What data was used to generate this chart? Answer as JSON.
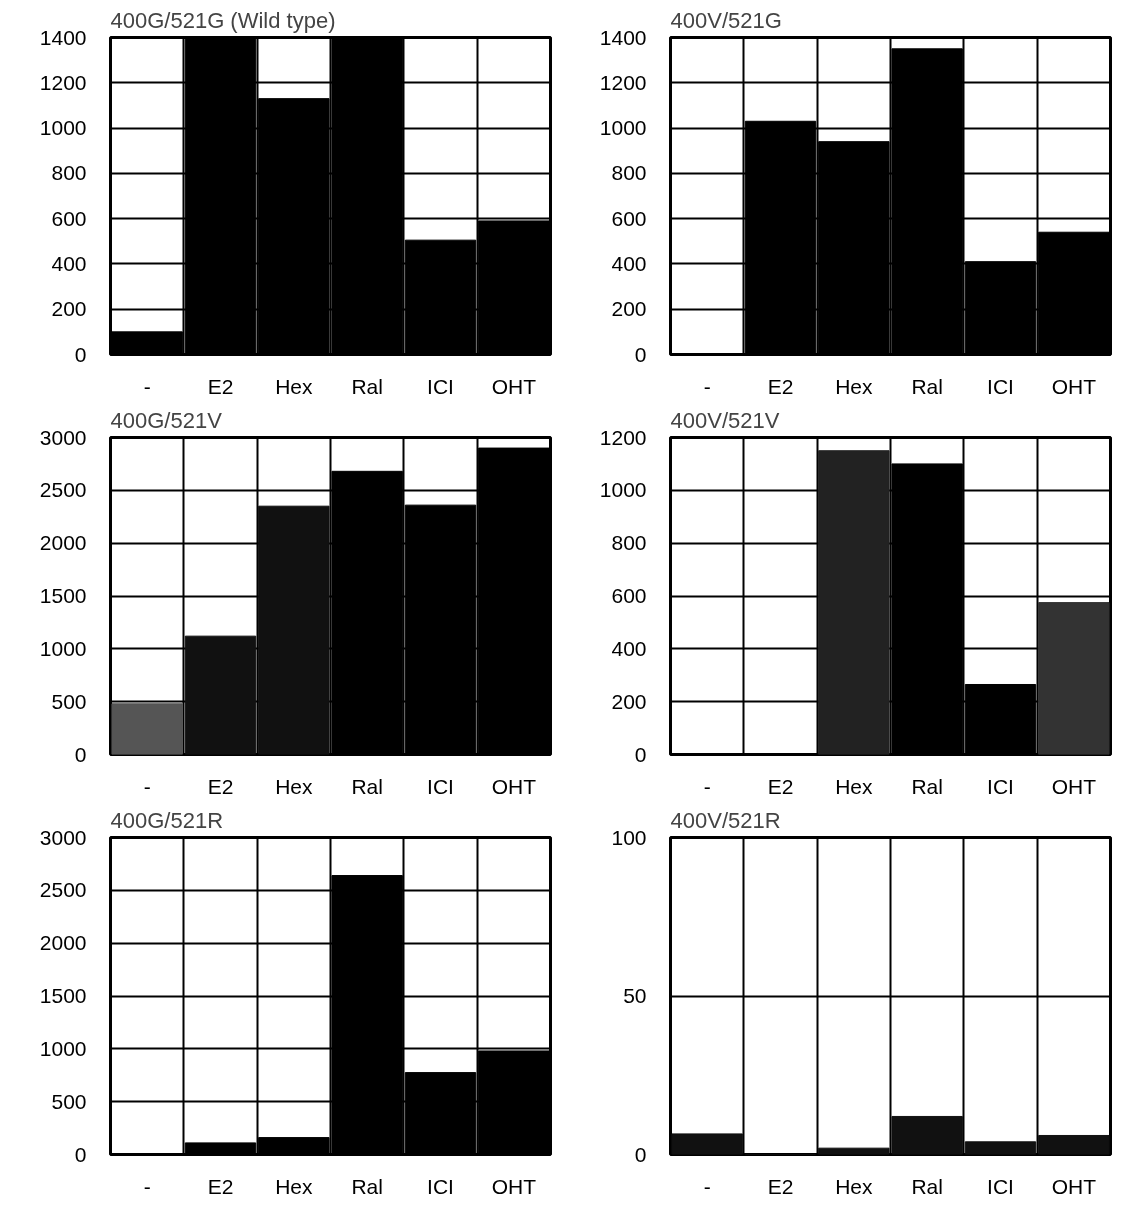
{
  "chart_data": [
    {
      "type": "bar",
      "title": "400G/521G (Wild  type)",
      "categories": [
        "-",
        "E2",
        "Hex",
        "Ral",
        "ICI",
        "OHT"
      ],
      "values": [
        100,
        1400,
        1130,
        1400,
        505,
        590
      ],
      "color": "#000000",
      "ylim": [
        0,
        1400
      ],
      "yticks": [
        0,
        200,
        400,
        600,
        800,
        1000,
        1200,
        1400
      ],
      "grid": true
    },
    {
      "type": "bar",
      "title": "400V/521G",
      "categories": [
        "-",
        "E2",
        "Hex",
        "Ral",
        "ICI",
        "OHT"
      ],
      "values": [
        0,
        1030,
        940,
        1350,
        410,
        540
      ],
      "color": "#000000",
      "ylim": [
        0,
        1400
      ],
      "yticks": [
        0,
        200,
        400,
        600,
        800,
        1000,
        1200,
        1400
      ],
      "grid": true
    },
    {
      "type": "bar",
      "title": "400G/521V",
      "categories": [
        "-",
        "E2",
        "Hex",
        "Ral",
        "ICI",
        "OHT"
      ],
      "values": [
        480,
        1120,
        2350,
        2680,
        2360,
        2900
      ],
      "colors": [
        "#555555",
        "#111111",
        "#111111",
        "#000000",
        "#000000",
        "#000000"
      ],
      "ylim": [
        0,
        3000
      ],
      "yticks": [
        0,
        500,
        1000,
        1500,
        2000,
        2500,
        3000
      ],
      "grid": true
    },
    {
      "type": "bar",
      "title": "400V/521V",
      "categories": [
        "-",
        "E2",
        "Hex",
        "Ral",
        "ICI",
        "OHT"
      ],
      "values": [
        0,
        0,
        1150,
        1100,
        265,
        575
      ],
      "colors": [
        "#000000",
        "#000000",
        "#222222",
        "#000000",
        "#000000",
        "#333333"
      ],
      "ylim": [
        0,
        1200
      ],
      "yticks": [
        0,
        200,
        400,
        600,
        800,
        1000,
        1200
      ],
      "grid": true
    },
    {
      "type": "bar",
      "title": "400G/521R",
      "categories": [
        "-",
        "E2",
        "Hex",
        "Ral",
        "ICI",
        "OHT"
      ],
      "values": [
        0,
        110,
        160,
        2640,
        775,
        980
      ],
      "color": "#000000",
      "ylim": [
        0,
        3000
      ],
      "yticks": [
        0,
        500,
        1000,
        1500,
        2000,
        2500,
        3000
      ],
      "grid": true
    },
    {
      "type": "bar",
      "title": "400V/521R",
      "categories": [
        "-",
        "E2",
        "Hex",
        "Ral",
        "ICI",
        "OHT"
      ],
      "values": [
        6.5,
        0,
        2,
        12,
        4,
        6
      ],
      "color": "#111111",
      "ylim": [
        0,
        100
      ],
      "yticks": [
        0,
        50,
        100
      ],
      "grid": true
    }
  ]
}
